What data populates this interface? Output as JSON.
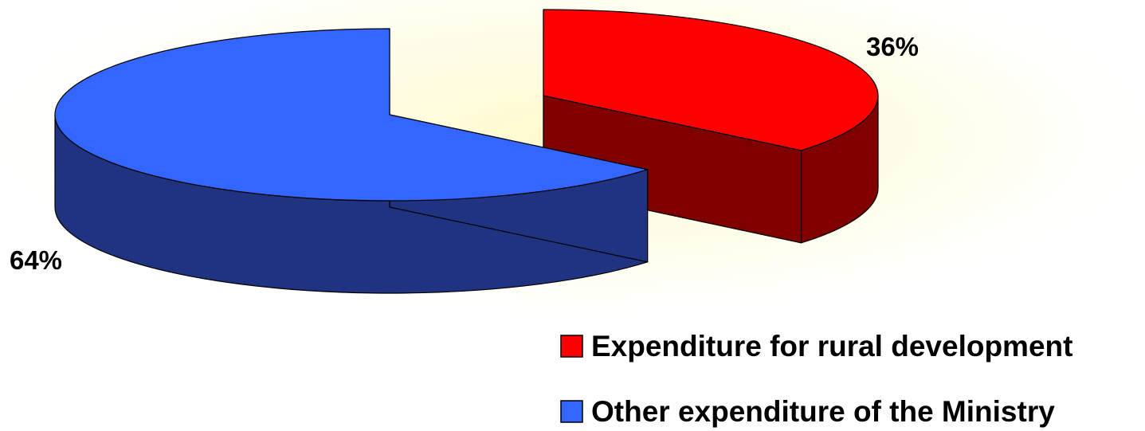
{
  "chart_data": {
    "type": "pie",
    "style": "3d-exploded",
    "categories": [
      "Expenditure for rural development",
      "Other expenditure of the Ministry"
    ],
    "values": [
      36,
      64
    ],
    "labels": [
      "36%",
      "64%"
    ],
    "colors": {
      "top": [
        "#FF0000",
        "#3366FF"
      ],
      "side": [
        "#800000",
        "#1F3380"
      ]
    },
    "legend": {
      "position": "bottom-right",
      "entries": [
        "Expenditure for rural development",
        "Other expenditure of the Ministry"
      ]
    }
  }
}
